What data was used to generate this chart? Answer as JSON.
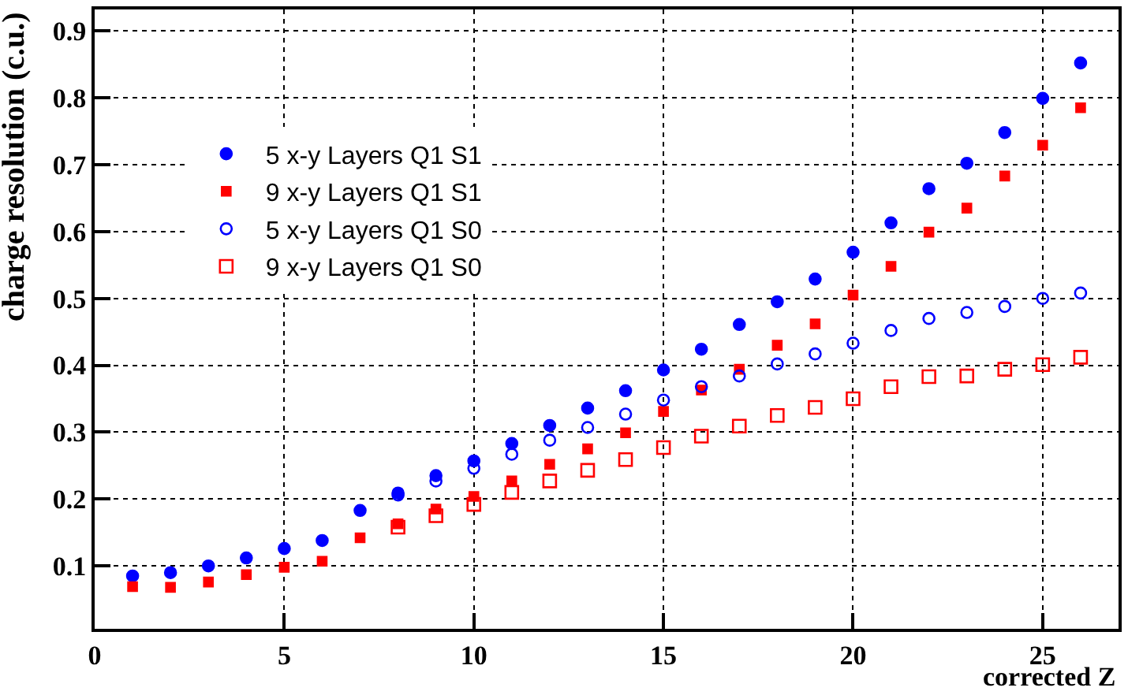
{
  "chart_data": {
    "type": "scatter",
    "xlabel": "corrected Z",
    "ylabel": "charge resolution (c.u.)",
    "x": [
      1,
      2,
      3,
      4,
      5,
      6,
      7,
      8,
      9,
      10,
      11,
      12,
      13,
      14,
      15,
      16,
      17,
      18,
      19,
      20,
      21,
      22,
      23,
      24,
      25,
      26
    ],
    "series": [
      {
        "name": "5 x-y Layers Q1 S1",
        "color": "#0000ff",
        "marker": "circle",
        "values": [
          0.085,
          0.09,
          0.1,
          0.112,
          0.126,
          0.138,
          0.183,
          0.209,
          0.235,
          0.257,
          0.283,
          0.31,
          0.336,
          0.362,
          0.393,
          0.424,
          0.461,
          0.495,
          0.529,
          0.569,
          0.613,
          0.664,
          0.702,
          0.748,
          0.799,
          0.852
        ]
      },
      {
        "name": "9 x-y Layers Q1 S1",
        "color": "#ff0000",
        "marker": "square",
        "values": [
          0.069,
          0.068,
          0.076,
          0.087,
          0.098,
          0.107,
          0.142,
          0.163,
          0.185,
          0.204,
          0.227,
          0.252,
          0.275,
          0.299,
          0.331,
          0.363,
          0.394,
          0.43,
          0.462,
          0.505,
          0.548,
          0.599,
          0.635,
          0.683,
          0.729,
          0.785
        ]
      },
      {
        "name": "5 x-y Layers Q1 S0",
        "color": "#0000ff",
        "marker": "circle-open",
        "values": [
          null,
          null,
          null,
          null,
          null,
          null,
          null,
          0.206,
          0.227,
          0.246,
          0.267,
          0.288,
          0.307,
          0.327,
          0.348,
          0.368,
          0.384,
          0.402,
          0.417,
          0.433,
          0.452,
          0.47,
          0.479,
          0.488,
          0.5,
          0.508
        ]
      },
      {
        "name": "9 x-y Layers Q1 S0",
        "color": "#ff0000",
        "marker": "square-open",
        "values": [
          null,
          null,
          null,
          null,
          null,
          null,
          null,
          0.158,
          0.175,
          0.192,
          0.21,
          0.227,
          0.243,
          0.259,
          0.277,
          0.294,
          0.309,
          0.325,
          0.337,
          0.35,
          0.368,
          0.383,
          0.384,
          0.394,
          0.401,
          0.412
        ]
      }
    ],
    "xlim": [
      0,
      27
    ],
    "xticks": [
      0,
      5,
      10,
      15,
      20,
      25
    ],
    "ylim": [
      0.006,
      0.932
    ],
    "yticks": [
      0.1,
      0.2,
      0.3,
      0.4,
      0.5,
      0.6,
      0.7,
      0.8,
      0.9
    ],
    "grid": true,
    "legend": "top left"
  }
}
